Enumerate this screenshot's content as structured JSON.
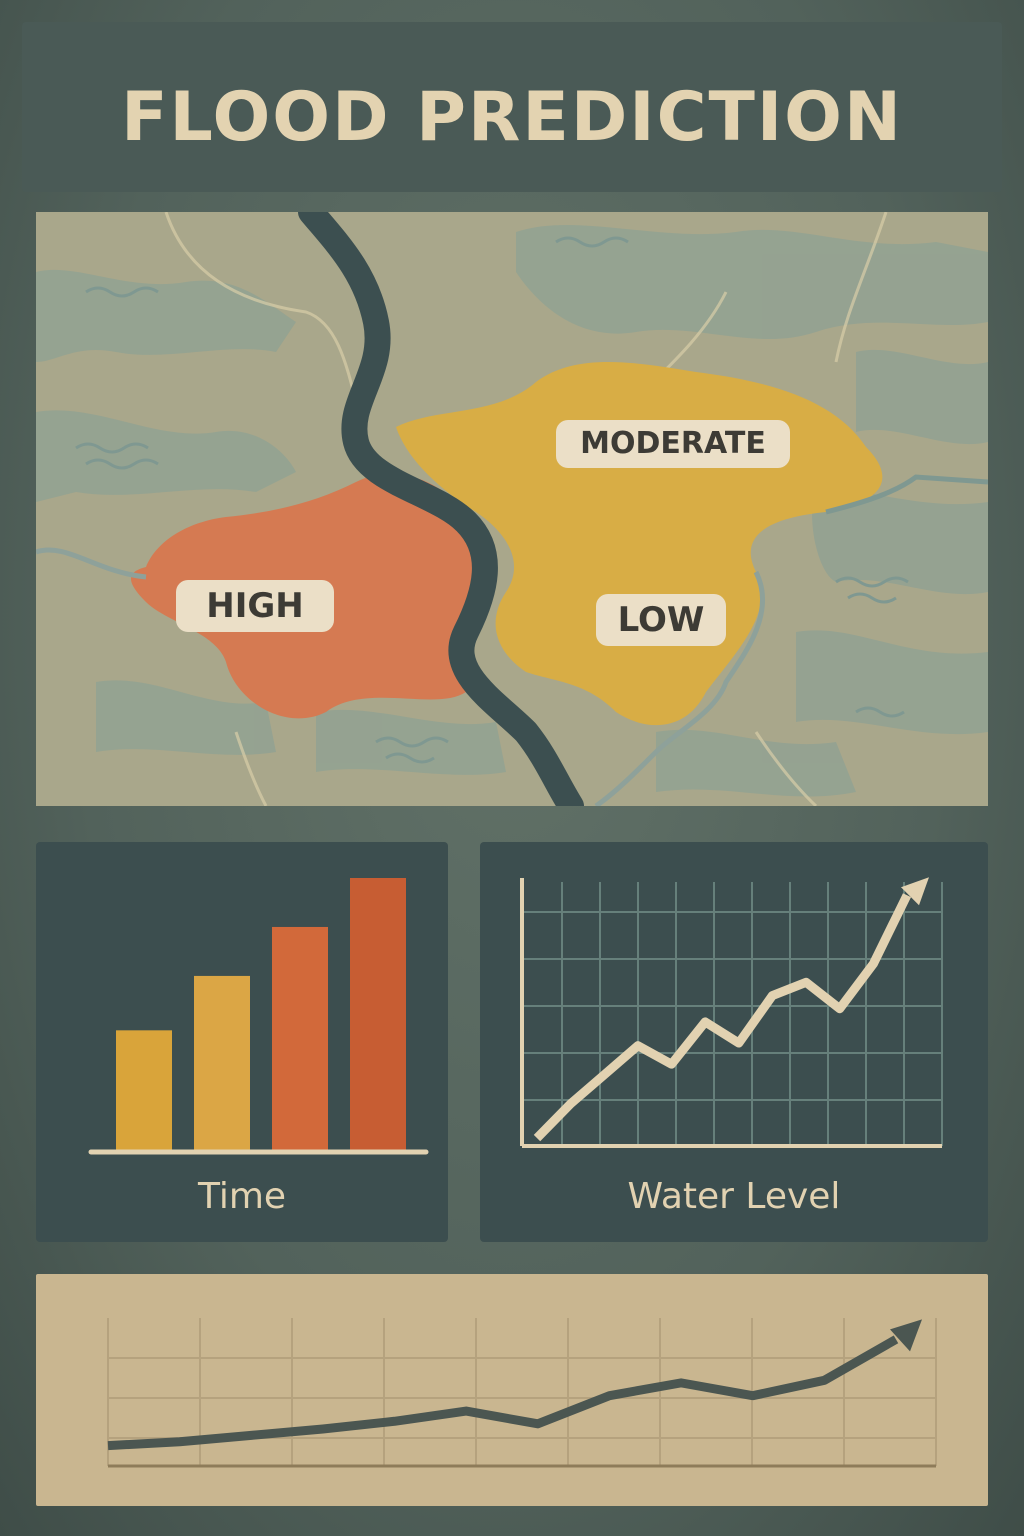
{
  "title": "FLOOD PREDICTION",
  "map": {
    "zones": [
      {
        "label": "MODERATE",
        "risk": "moderate",
        "color": "#d8ad45"
      },
      {
        "label": "HIGH",
        "risk": "high",
        "color": "#d57a52"
      },
      {
        "label": "LOW",
        "risk": "low",
        "color": "#d8ad45"
      }
    ],
    "river_color": "#3c4f50",
    "land_color": "#aaa88c"
  },
  "chart_data": [
    {
      "type": "bar",
      "xlabel": "Time",
      "values": [
        0.44,
        0.64,
        0.82,
        1.0
      ],
      "colors": [
        "#d9a43a",
        "#dba645",
        "#d2693a",
        "#c75d33"
      ],
      "grid": false
    },
    {
      "type": "line",
      "xlabel": "Water Level",
      "values": [
        0.03,
        0.16,
        0.27,
        0.38,
        0.31,
        0.47,
        0.39,
        0.57,
        0.62,
        0.52,
        0.69,
        0.95
      ],
      "grid": true,
      "arrow": true
    },
    {
      "type": "line",
      "values": [
        0.05,
        0.08,
        0.13,
        0.18,
        0.24,
        0.32,
        0.22,
        0.44,
        0.54,
        0.44,
        0.56,
        0.88
      ],
      "grid": true,
      "arrow": true
    }
  ]
}
